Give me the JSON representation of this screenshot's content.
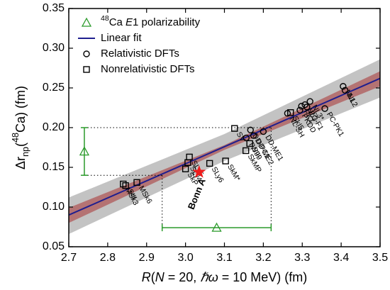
{
  "chart_data": {
    "type": "scatter",
    "xlabel_parts": [
      {
        "text": "R",
        "style": "italic"
      },
      {
        "text": "("
      },
      {
        "text": "N",
        "style": "italic"
      },
      {
        "text": " = 20, "
      },
      {
        "text": "ℏω",
        "style": "italic"
      },
      {
        "text": " = 10 MeV) (fm)"
      }
    ],
    "ylabel_parts": [
      {
        "text": "Δr"
      },
      {
        "text": "np",
        "style": "sub"
      },
      {
        "text": "("
      },
      {
        "text": "48",
        "style": "sup"
      },
      {
        "text": "Ca) (fm)"
      }
    ],
    "xlim": [
      2.7,
      3.5
    ],
    "ylim": [
      0.05,
      0.35
    ],
    "xticks": [
      2.7,
      2.8,
      2.9,
      {
        "value": 3,
        "label": "3.0"
      },
      3.1,
      3.2,
      3.3,
      3.4,
      3.5
    ],
    "yticks": [
      0.05,
      {
        "value": 0.1,
        "label": "0.10"
      },
      0.15,
      {
        "value": 0.2,
        "label": "0.20"
      },
      0.25,
      {
        "value": 0.3,
        "label": "0.30"
      },
      0.35
    ],
    "bands": [
      {
        "color": "#b8b8b8",
        "x": [
          2.7,
          3.1,
          3.5
        ],
        "lower": [
          0.066,
          0.158,
          0.238
        ],
        "upper": [
          0.112,
          0.192,
          0.286
        ]
      },
      {
        "color": "#b26565",
        "x": [
          2.7,
          3.1,
          3.5
        ],
        "lower": [
          0.08,
          0.172,
          0.252
        ],
        "upper": [
          0.099,
          0.178,
          0.271
        ]
      }
    ],
    "fit": {
      "name": "Linear fit",
      "color": "#1f1f8f",
      "x": [
        2.7,
        3.5
      ],
      "y": [
        0.09,
        0.262
      ]
    },
    "constraint": {
      "name_parts": [
        {
          "text": "48",
          "style": "sup"
        },
        {
          "text": "Ca "
        },
        {
          "text": "E",
          "style": "italic"
        },
        {
          "text": "1 polarizability"
        }
      ],
      "color": "#2a9a2a",
      "point": {
        "x": 2.74,
        "y": 0.17,
        "ylow": 0.14,
        "yhigh": 0.2
      },
      "projection": {
        "x": 3.08,
        "y": 0.074,
        "xlow": 2.94,
        "xhigh": 3.22
      }
    },
    "series": [
      {
        "name": "Relativistic DFTs",
        "marker": "circle",
        "color": "#000000",
        "labels": [
          "NL1",
          "NL2",
          "PC-PK1",
          "NL3*",
          "NL3",
          "PC-F1",
          "PK1",
          "PKDD",
          "NL-SH",
          "DD-ME1",
          "DD-ME2",
          "DD-PC1",
          "TW99"
        ],
        "x": [
          3.405,
          3.41,
          3.358,
          3.32,
          3.307,
          3.312,
          3.298,
          3.294,
          3.262,
          3.2,
          3.175,
          3.167,
          3.156
        ],
        "values": [
          0.252,
          0.247,
          0.224,
          0.233,
          0.229,
          0.226,
          0.227,
          0.222,
          0.218,
          0.195,
          0.19,
          0.197,
          0.187
        ]
      },
      {
        "name": "Nonrelativistic DFTs",
        "marker": "square",
        "color": "#000000",
        "labels": [
          "SkI5",
          "SV",
          "SIII",
          "SkMP",
          "SkM*",
          "SLy6",
          "SLy5",
          "SLy4",
          "SkP",
          "MSk6",
          "SIII",
          "MSk3"
        ],
        "x": [
          3.27,
          3.126,
          3.165,
          3.155,
          3.103,
          3.062,
          3.01,
          3.006,
          3.0,
          2.875,
          2.846,
          2.84
        ],
        "values": [
          0.219,
          0.199,
          0.18,
          0.171,
          0.158,
          0.155,
          0.163,
          0.156,
          0.148,
          0.131,
          0.127,
          0.129
        ]
      }
    ],
    "highlight": {
      "label": "Bonn A",
      "color": "#ee1c1c",
      "x": 3.035,
      "y": 0.144
    }
  }
}
